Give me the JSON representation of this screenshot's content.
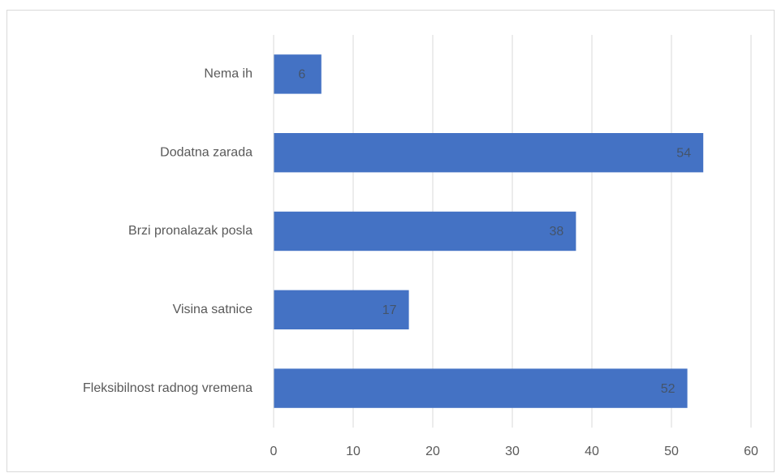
{
  "chart_data": {
    "type": "bar",
    "orientation": "horizontal",
    "categories": [
      "Nema ih",
      "Dodatna zarada",
      "Brzi pronalazak posla",
      "Visina satnice",
      "Fleksibilnost radnog vremena"
    ],
    "values": [
      6,
      54,
      38,
      17,
      52
    ],
    "color": "#4472c4",
    "xlim": [
      0,
      60
    ],
    "xticks": [
      0,
      10,
      20,
      30,
      40,
      50,
      60
    ],
    "grid": true,
    "data_labels": true
  }
}
